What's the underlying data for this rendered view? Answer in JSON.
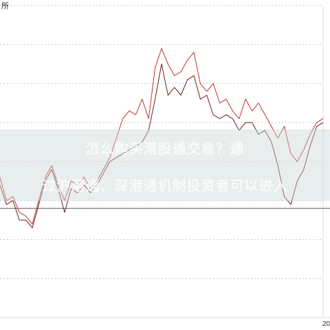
{
  "top_label": "所",
  "overlay": {
    "line1": "怎么购买港股通交易？通",
    "line2": "过沪港通、深港通机制投资者可以进入"
  },
  "x_axis_label": "20",
  "colors": {
    "series_a": "#c03030",
    "series_b": "#6a1a1a",
    "gridline": "#c8c8c8",
    "frame": "#d9d9d9",
    "reference_line": "#555555"
  },
  "chart_data": {
    "type": "line",
    "title": "",
    "xlabel": "",
    "ylabel": "",
    "ylim": [
      0,
      8
    ],
    "xlim": [
      0,
      100
    ],
    "grid": true,
    "reference_y": 2.8,
    "x": [
      0,
      2,
      4,
      6,
      8,
      10,
      12,
      14,
      16,
      18,
      20,
      22,
      24,
      26,
      28,
      30,
      32,
      34,
      36,
      38,
      40,
      42,
      44,
      46,
      48,
      50,
      52,
      54,
      56,
      58,
      60,
      62,
      64,
      66,
      68,
      70,
      72,
      74,
      76,
      78,
      80,
      82,
      84,
      86,
      88,
      90,
      92,
      94,
      96,
      98,
      100
    ],
    "series": [
      {
        "values": [
          3.6,
          3.0,
          3.1,
          2.7,
          2.6,
          2.4,
          3.0,
          3.6,
          3.9,
          3.4,
          3.0,
          3.5,
          3.4,
          3.6,
          3.3,
          3.5,
          3.8,
          4.1,
          4.6,
          5.1,
          5.3,
          5.2,
          5.6,
          5.1,
          6.4,
          6.9,
          6.5,
          6.2,
          6.3,
          6.6,
          6.8,
          6.0,
          5.8,
          6.0,
          5.5,
          5.6,
          5.3,
          5.1,
          5.6,
          5.3,
          5.5,
          5.2,
          4.9,
          4.6,
          4.9,
          4.2,
          4.0,
          4.3,
          4.7,
          5.0,
          5.1
        ]
      },
      {
        "values": [
          3.4,
          2.9,
          3.0,
          2.5,
          2.5,
          2.3,
          2.9,
          3.5,
          3.8,
          3.3,
          2.7,
          3.3,
          3.2,
          3.4,
          3.2,
          3.4,
          3.7,
          4.0,
          4.1,
          4.2,
          4.3,
          4.4,
          4.5,
          4.8,
          5.6,
          6.5,
          5.7,
          5.9,
          5.7,
          6.1,
          6.2,
          5.6,
          5.7,
          5.2,
          5.1,
          5.2,
          5.1,
          4.8,
          5.0,
          5.0,
          4.7,
          4.8,
          4.5,
          3.9,
          3.1,
          2.9,
          3.5,
          3.8,
          4.4,
          4.9,
          5.0
        ]
      }
    ]
  }
}
